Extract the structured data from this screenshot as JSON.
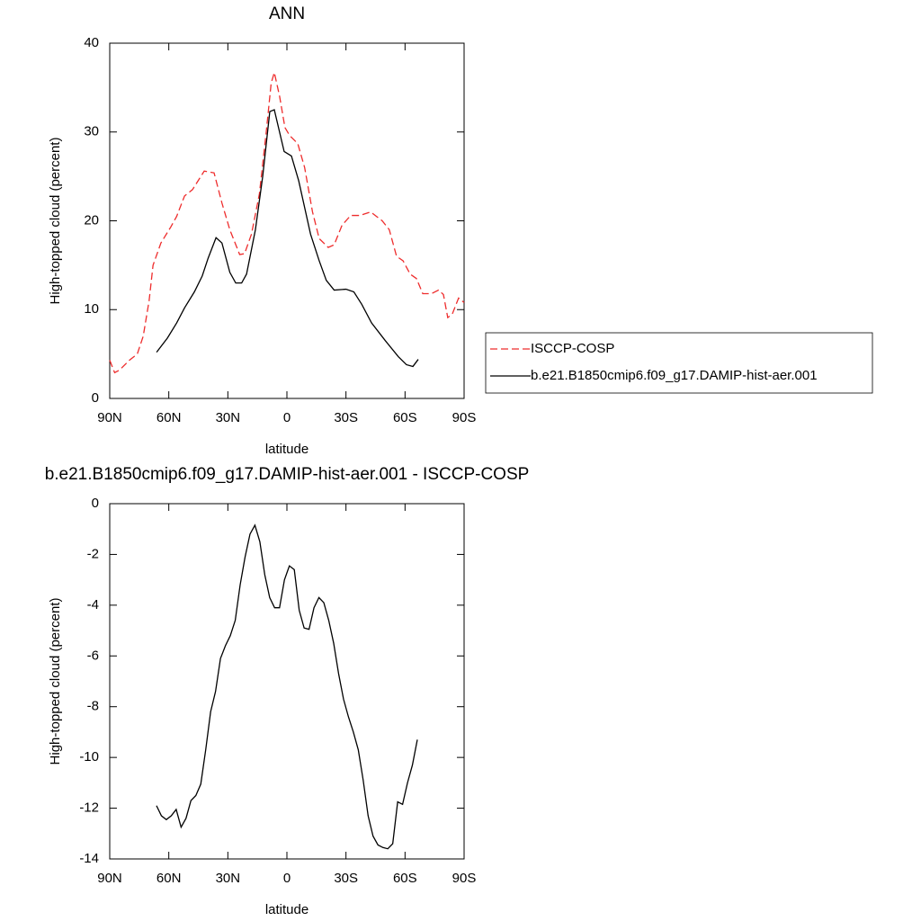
{
  "chart_data": [
    {
      "type": "line",
      "title": "ANN",
      "x_label": "latitude",
      "y_label": "High-topped cloud (percent)",
      "xlim": [
        90,
        -90
      ],
      "xticks": [
        {
          "value": 90,
          "label": "90N"
        },
        {
          "value": 60,
          "label": "60N"
        },
        {
          "value": 30,
          "label": "30N"
        },
        0,
        {
          "value": -30,
          "label": "30S"
        },
        {
          "value": -60,
          "label": "60S"
        },
        {
          "value": -90,
          "label": "90S"
        }
      ],
      "ylim": [
        0,
        40
      ],
      "yticks": [
        0,
        10,
        20,
        30,
        40
      ],
      "legend": "outside right",
      "series": [
        {
          "name": "ISCCP-COSP",
          "color": "#ee2c2c",
          "dashed": true,
          "x": [
            90,
            87.5,
            85,
            80,
            76,
            73,
            70,
            68,
            64,
            59,
            56,
            52,
            48,
            42,
            37,
            33,
            29,
            24,
            21.5,
            18,
            14,
            10.5,
            8,
            6.4,
            3.7,
            1,
            -1.4,
            -5.5,
            -9,
            -13,
            -16.4,
            -21,
            -24,
            -28,
            -32.4,
            -37,
            -42.5,
            -48.4,
            -52,
            -55.7,
            -59,
            -62.6,
            -65.8,
            -69,
            -73.5,
            -77,
            -79.5,
            -81.7,
            -84,
            -87.2,
            -90
          ],
          "values": [
            4.3,
            2.9,
            3.2,
            4.3,
            5.0,
            7,
            11,
            15,
            17.5,
            19.3,
            20.5,
            22.8,
            23.5,
            25.6,
            25.4,
            22,
            19,
            16.2,
            16.3,
            18.5,
            23,
            30,
            35.5,
            36.7,
            34,
            30.5,
            29.6,
            28.7,
            26,
            21,
            18,
            17,
            17.3,
            19.5,
            20.6,
            20.6,
            21,
            20,
            19,
            16,
            15.5,
            14,
            13.5,
            11.8,
            11.8,
            12.2,
            11.7,
            9.1,
            9.5,
            11.3,
            10.8
          ]
        },
        {
          "name": "b.e21.B1850cmip6.f09_g17.DAMIP-hist-aer.001",
          "color": "#000000",
          "dashed": false,
          "x": [
            66.2,
            60.7,
            56,
            52,
            47,
            43,
            40,
            36,
            33,
            29,
            26,
            23,
            20.5,
            16,
            12.3,
            8.7,
            6.4,
            1.4,
            -2.3,
            -6,
            -12,
            -16.4,
            -20,
            -24,
            -30,
            -34,
            -38,
            -43,
            -50,
            -56.6,
            -60.7,
            -64,
            -66.7
          ],
          "values": [
            5.2,
            6.8,
            8.5,
            10.2,
            12,
            13.8,
            15.8,
            18.1,
            17.5,
            14.2,
            13,
            13,
            14,
            19,
            25,
            32.3,
            32.5,
            27.8,
            27.3,
            24.5,
            18.5,
            15.5,
            13.3,
            12.2,
            12.3,
            12,
            10.6,
            8.5,
            6.5,
            4.7,
            3.8,
            3.6,
            4.4
          ]
        }
      ]
    },
    {
      "type": "line",
      "title": "b.e21.B1850cmip6.f09_g17.DAMIP-hist-aer.001 - ISCCP-COSP",
      "x_label": "latitude",
      "y_label": "High-topped cloud (percent)",
      "xlim": [
        90,
        -90
      ],
      "xticks": [
        {
          "value": 90,
          "label": "90N"
        },
        {
          "value": 60,
          "label": "60N"
        },
        {
          "value": 30,
          "label": "30N"
        },
        0,
        {
          "value": -30,
          "label": "30S"
        },
        {
          "value": -60,
          "label": "60S"
        },
        {
          "value": -90,
          "label": "90S"
        }
      ],
      "ylim": [
        -14,
        0
      ],
      "yticks": [
        0,
        -2,
        -4,
        -6,
        -8,
        -10,
        -12,
        -14
      ],
      "color": "#000000",
      "x": [
        66.25,
        63.75,
        61.25,
        58.75,
        56.25,
        53.75,
        51.25,
        48.75,
        46.25,
        43.75,
        41.25,
        38.75,
        36.25,
        33.75,
        31.25,
        28.75,
        26.25,
        23.75,
        21.25,
        18.75,
        16.25,
        13.75,
        11.25,
        8.75,
        6.25,
        3.75,
        1.25,
        -1.25,
        -3.75,
        -6.25,
        -8.75,
        -11.25,
        -13.75,
        -16.25,
        -18.75,
        -21.25,
        -23.75,
        -26.25,
        -28.75,
        -31.25,
        -33.75,
        -36.25,
        -38.75,
        -41.25,
        -43.75,
        -46.25,
        -48.75,
        -51.25,
        -53.75,
        -56.25,
        -58.75,
        -61.25,
        -63.75,
        -66.25
      ],
      "values": [
        -11.9,
        -12.3,
        -12.45,
        -12.3,
        -12.05,
        -12.75,
        -12.4,
        -11.7,
        -11.5,
        -11.05,
        -9.7,
        -8.2,
        -7.4,
        -6.1,
        -5.6,
        -5.2,
        -4.6,
        -3.2,
        -2.1,
        -1.2,
        -0.85,
        -1.5,
        -2.8,
        -3.7,
        -4.1,
        -4.1,
        -3.0,
        -2.45,
        -2.6,
        -4.2,
        -4.9,
        -4.95,
        -4.1,
        -3.7,
        -3.9,
        -4.6,
        -5.5,
        -6.7,
        -7.7,
        -8.4,
        -9.0,
        -9.7,
        -10.9,
        -12.3,
        -13.1,
        -13.45,
        -13.55,
        -13.6,
        -13.4,
        -11.75,
        -11.85,
        -11.0,
        -10.3,
        -9.3
      ]
    }
  ]
}
